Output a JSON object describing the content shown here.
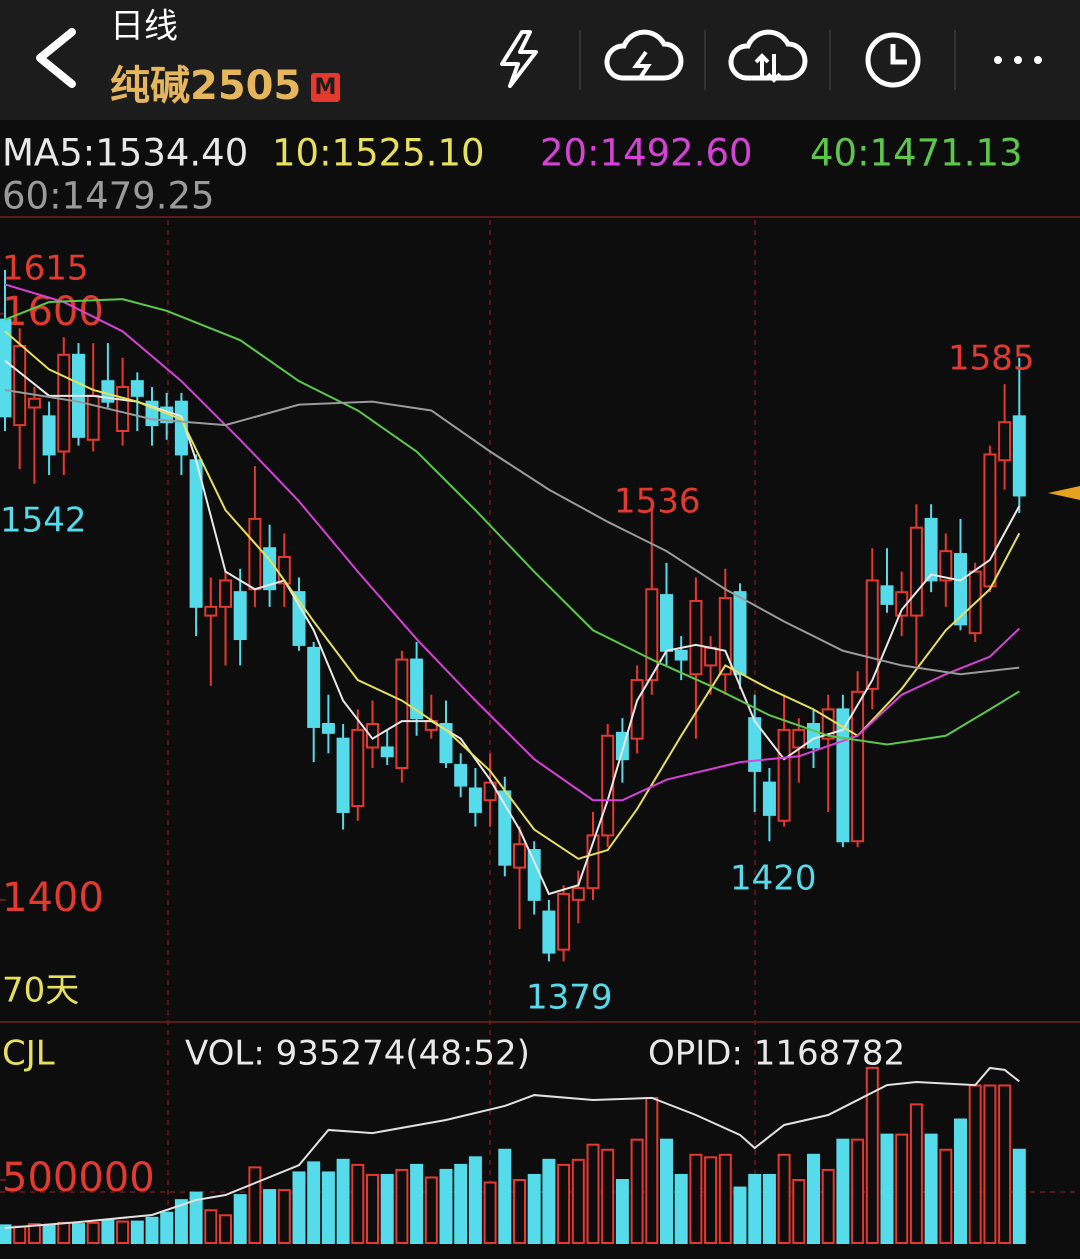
{
  "header": {
    "period": "日线",
    "symbol": "纯碱2505",
    "badge": "M"
  },
  "chart_data": [
    {
      "type": "candlestick",
      "open": [
        1598,
        1562,
        1568,
        1565,
        1553,
        1586,
        1557,
        1577,
        1560,
        1577,
        1570,
        1568,
        1570,
        1550,
        1497,
        1500,
        1505,
        1506,
        1520,
        1508,
        1505,
        1486,
        1460,
        1455,
        1432,
        1452,
        1452,
        1445,
        1482,
        1458,
        1460,
        1446,
        1438,
        1434,
        1437,
        1411,
        1417,
        1396,
        1383,
        1400,
        1404,
        1422,
        1457,
        1455,
        1475,
        1504,
        1485,
        1477,
        1480,
        1477,
        1505,
        1462,
        1440,
        1427,
        1452,
        1460,
        1455,
        1465,
        1420,
        1472,
        1507,
        1497,
        1497,
        1530,
        1509,
        1518,
        1491,
        1507,
        1550,
        1565
      ],
      "high": [
        1615,
        1595,
        1575,
        1570,
        1592,
        1590,
        1590,
        1590,
        1585,
        1580,
        1575,
        1573,
        1573,
        1552,
        1510,
        1512,
        1513,
        1548,
        1528,
        1525,
        1510,
        1488,
        1470,
        1460,
        1465,
        1468,
        1458,
        1485,
        1488,
        1470,
        1468,
        1450,
        1445,
        1450,
        1442,
        1425,
        1420,
        1400,
        1405,
        1410,
        1430,
        1460,
        1462,
        1480,
        1536,
        1515,
        1490,
        1510,
        1490,
        1513,
        1508,
        1470,
        1445,
        1470,
        1462,
        1465,
        1470,
        1470,
        1478,
        1520,
        1520,
        1512,
        1535,
        1535,
        1525,
        1530,
        1515,
        1555,
        1576,
        1585
      ],
      "low": [
        1560,
        1547,
        1542,
        1545,
        1545,
        1555,
        1553,
        1568,
        1555,
        1560,
        1555,
        1557,
        1545,
        1490,
        1473,
        1480,
        1480,
        1500,
        1500,
        1500,
        1485,
        1447,
        1450,
        1424,
        1427,
        1445,
        1446,
        1440,
        1456,
        1455,
        1445,
        1435,
        1425,
        1425,
        1408,
        1390,
        1395,
        1379,
        1379,
        1392,
        1400,
        1418,
        1440,
        1450,
        1470,
        1480,
        1475,
        1455,
        1470,
        1470,
        1472,
        1430,
        1420,
        1425,
        1440,
        1445,
        1430,
        1418,
        1418,
        1465,
        1498,
        1490,
        1480,
        1505,
        1500,
        1492,
        1488,
        1505,
        1540,
        1532
      ],
      "close": [
        1565,
        1589,
        1571,
        1552,
        1586,
        1558,
        1572,
        1570,
        1575,
        1572,
        1562,
        1563,
        1552,
        1500,
        1500,
        1509,
        1489,
        1530,
        1506,
        1517,
        1487,
        1459,
        1457,
        1430,
        1458,
        1460,
        1449,
        1482,
        1462,
        1461,
        1447,
        1439,
        1430,
        1440,
        1412,
        1419,
        1400,
        1382,
        1402,
        1404,
        1422,
        1456,
        1448,
        1475,
        1506,
        1485,
        1482,
        1502,
        1486,
        1503,
        1477,
        1444,
        1429,
        1458,
        1458,
        1452,
        1465,
        1420,
        1471,
        1509,
        1501,
        1505,
        1527,
        1509,
        1519,
        1494,
        1512,
        1552,
        1563,
        1538
      ],
      "up_color": "#e4392e",
      "down_color": "#55dbea",
      "ylim": [
        1359,
        1632
      ],
      "yticks": [
        1600,
        1400
      ],
      "annotations": [
        "1615",
        "1542",
        "1536",
        "1420",
        "1379",
        "1585"
      ],
      "period_label": "70天",
      "series": [
        {
          "name": "MA5:1534.40",
          "color": "#e8e8e8",
          "x": [
            0,
            3,
            6,
            9,
            12,
            13,
            15,
            17,
            19,
            21,
            23,
            25,
            27,
            29,
            31,
            33,
            35,
            37,
            39,
            41,
            43,
            45,
            47,
            49,
            51,
            53,
            55,
            57,
            59,
            61,
            63,
            65,
            67,
            69
          ],
          "values": [
            1584,
            1572,
            1572,
            1570,
            1565,
            1550,
            1512,
            1506,
            1509,
            1492,
            1468,
            1455,
            1461,
            1461,
            1455,
            1441,
            1424,
            1402,
            1405,
            1434,
            1468,
            1485,
            1487,
            1485,
            1461,
            1448,
            1455,
            1458,
            1475,
            1499,
            1511,
            1509,
            1516,
            1534.4
          ]
        },
        {
          "name": "10:1525.10",
          "color": "#e6e05a",
          "x": [
            0,
            3,
            6,
            9,
            12,
            15,
            18,
            21,
            24,
            27,
            30,
            33,
            36,
            39,
            41,
            43,
            46,
            49,
            52,
            55,
            58,
            61,
            64,
            67,
            69
          ],
          "values": [
            1594,
            1581,
            1574,
            1570,
            1564,
            1533,
            1516,
            1495,
            1475,
            1468,
            1458,
            1444,
            1424,
            1414,
            1417,
            1431,
            1456,
            1480,
            1472,
            1465,
            1456,
            1472,
            1492,
            1506,
            1525.1
          ]
        },
        {
          "name": "20:1492.60",
          "color": "#d642d6",
          "x": [
            0,
            4,
            8,
            12,
            16,
            20,
            24,
            28,
            32,
            36,
            40,
            42,
            45,
            50,
            54,
            58,
            61,
            64,
            67,
            69
          ],
          "values": [
            1610,
            1604,
            1594,
            1577,
            1557,
            1536,
            1512,
            1489,
            1468,
            1448,
            1434,
            1434,
            1441,
            1447,
            1449,
            1456,
            1470,
            1477,
            1483,
            1492.6
          ]
        },
        {
          "name": "40:1471.13",
          "color": "#5cc84a",
          "x": [
            0,
            3,
            8,
            11,
            16,
            20,
            24,
            28,
            32,
            36,
            40,
            44,
            48,
            52,
            56,
            60,
            64,
            67,
            69
          ],
          "values": [
            1598,
            1604,
            1605,
            1601,
            1591,
            1577,
            1567,
            1553,
            1533,
            1512,
            1492,
            1482,
            1473,
            1463,
            1456,
            1453,
            1456,
            1465,
            1471.13
          ]
        },
        {
          "name": "60:1479.25",
          "color": "#9a9a9a",
          "x": [
            0,
            5,
            10,
            15,
            20,
            25,
            29,
            33,
            37,
            41,
            45,
            49,
            53,
            57,
            61,
            65,
            69
          ],
          "values": [
            1574,
            1570,
            1564,
            1562,
            1569,
            1570,
            1567,
            1553,
            1540,
            1529,
            1519,
            1506,
            1495,
            1485,
            1480,
            1477,
            1479.25
          ]
        }
      ]
    },
    {
      "type": "bar",
      "title": "CJL",
      "subtitle": "VOL: 935274(48:52)",
      "annotation": "OPID: 1168782",
      "values": [
        140000,
        130000,
        150000,
        140000,
        160000,
        150000,
        160000,
        180000,
        170000,
        170000,
        200000,
        240000,
        340000,
        400000,
        260000,
        220000,
        380000,
        600000,
        420000,
        420000,
        560000,
        640000,
        560000,
        660000,
        620000,
        540000,
        540000,
        580000,
        620000,
        520000,
        580000,
        620000,
        680000,
        480000,
        740000,
        500000,
        540000,
        660000,
        620000,
        660000,
        780000,
        740000,
        500000,
        820000,
        1150000,
        820000,
        540000,
        700000,
        680000,
        700000,
        440000,
        540000,
        540000,
        700000,
        500000,
        700000,
        580000,
        820000,
        820000,
        1390000,
        860000,
        860000,
        1100000,
        860000,
        740000,
        980000,
        1250000,
        1250000,
        1250000,
        740000
      ],
      "ylim": [
        0,
        1730000
      ],
      "yticks": [
        500000
      ],
      "y2lim": [
        650000,
        1350000
      ],
      "series": [
        {
          "axis": "y2",
          "color": "#e0e0e0",
          "x": [
            0,
            5,
            10,
            13,
            15,
            20,
            22,
            25,
            30,
            34,
            36,
            40,
            44,
            47,
            50,
            51,
            53,
            56,
            58,
            60,
            62,
            66,
            67,
            68,
            69
          ],
          "values": [
            698000,
            717000,
            740000,
            788000,
            804000,
            900000,
            1013000,
            1003000,
            1045000,
            1090000,
            1125000,
            1109000,
            1116000,
            1061000,
            997000,
            955000,
            1029000,
            1061000,
            1109000,
            1157000,
            1167000,
            1157000,
            1212000,
            1206000,
            1168782
          ]
        }
      ]
    }
  ]
}
